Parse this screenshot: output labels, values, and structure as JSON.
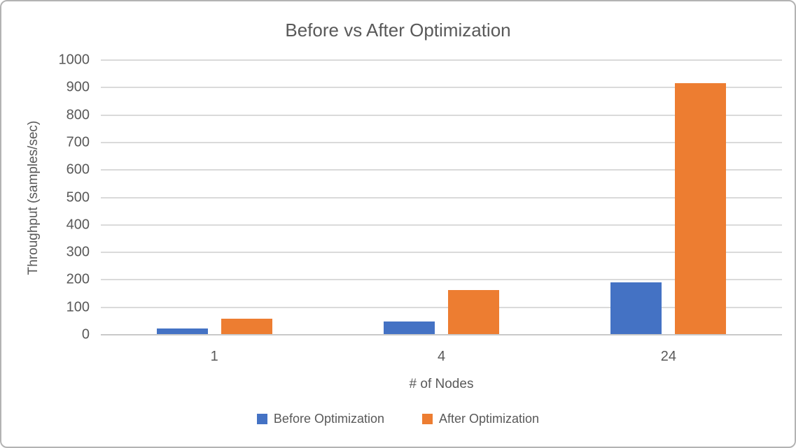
{
  "chart_data": {
    "type": "bar",
    "title": "Before vs After Optimization",
    "categories": [
      "1",
      "4",
      "24"
    ],
    "series": [
      {
        "name": "Before Optimization",
        "color": "#4472C4",
        "values": [
          23,
          48,
          190
        ]
      },
      {
        "name": "After Optimization",
        "color": "#ED7D31",
        "values": [
          58,
          163,
          915
        ]
      }
    ],
    "xlabel": "# of Nodes",
    "ylabel": "Throughput (samples/sec)",
    "ylim": [
      0,
      1000
    ],
    "ytick_step": 100,
    "yticks": [
      "0",
      "100",
      "200",
      "300",
      "400",
      "500",
      "600",
      "700",
      "800",
      "900",
      "1000"
    ],
    "grid": true,
    "legend_position": "bottom",
    "colors": {
      "text": "#595959",
      "gridline": "#dadada",
      "axis_line": "#c9c9c9",
      "background": "#ffffff",
      "border": "#b3b3b3"
    }
  }
}
